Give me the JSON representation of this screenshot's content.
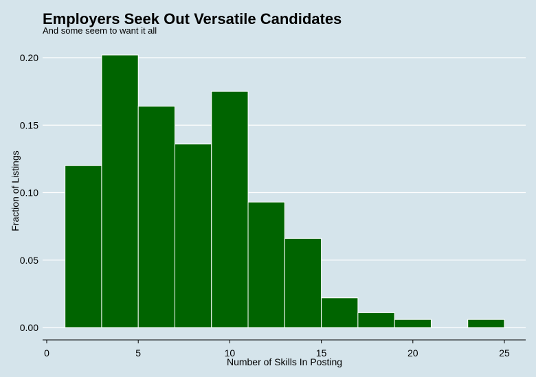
{
  "chart_data": {
    "type": "bar",
    "title": "Employers Seek Out Versatile Candidates",
    "subtitle": "And some seem to want it all",
    "xlabel": "Number of Skills In Posting",
    "ylabel": "Fraction of Listings",
    "xlim": [
      0,
      26
    ],
    "ylim": [
      0,
      0.21
    ],
    "x_ticks": [
      0,
      5,
      10,
      15,
      20,
      25
    ],
    "y_ticks": [
      0.0,
      0.05,
      0.1,
      0.15,
      0.2
    ],
    "y_tick_labels": [
      "0.00",
      "0.05",
      "0.10",
      "0.15",
      "0.20"
    ],
    "bins": [
      {
        "start": 1,
        "end": 3,
        "value": 0.12
      },
      {
        "start": 3,
        "end": 5,
        "value": 0.202
      },
      {
        "start": 5,
        "end": 7,
        "value": 0.164
      },
      {
        "start": 7,
        "end": 9,
        "value": 0.136
      },
      {
        "start": 9,
        "end": 11,
        "value": 0.175
      },
      {
        "start": 11,
        "end": 13,
        "value": 0.093
      },
      {
        "start": 13,
        "end": 15,
        "value": 0.066
      },
      {
        "start": 15,
        "end": 17,
        "value": 0.022
      },
      {
        "start": 17,
        "end": 19,
        "value": 0.011
      },
      {
        "start": 19,
        "end": 21,
        "value": 0.006
      },
      {
        "start": 21,
        "end": 23,
        "value": 0.0
      },
      {
        "start": 23,
        "end": 25,
        "value": 0.006
      }
    ],
    "grid": true,
    "colors": {
      "bar": "#006400",
      "bar_edge": "#ffffff",
      "background": "#d5e4eb",
      "grid": "#ffffff"
    }
  }
}
